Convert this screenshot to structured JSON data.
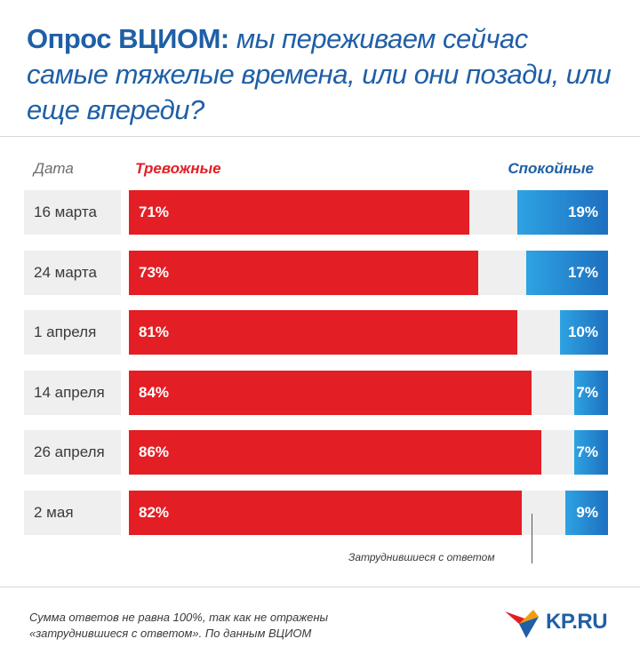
{
  "title": {
    "lead": "Опрос ВЦИОМ:",
    "rest": "мы переживаем сейчас самые тяжелые времена, или они позади, или еще впереди?"
  },
  "headers": {
    "date": "Дата",
    "left": "Тревожные",
    "right": "Спокойные"
  },
  "rows": [
    {
      "date": "16 марта",
      "left_label": "71%",
      "right_label": "19%"
    },
    {
      "date": "24 марта",
      "left_label": "73%",
      "right_label": "17%"
    },
    {
      "date": "1 апреля",
      "left_label": "81%",
      "right_label": "10%"
    },
    {
      "date": "14 апреля",
      "left_label": "84%",
      "right_label": "7%"
    },
    {
      "date": "26 апреля",
      "left_label": "86%",
      "right_label": "7%"
    },
    {
      "date": "2 мая",
      "left_label": "82%",
      "right_label": "9%"
    }
  ],
  "chart_data": {
    "type": "bar",
    "categories": [
      "16 марта",
      "24 марта",
      "1 апреля",
      "14 апреля",
      "26 апреля",
      "2 мая"
    ],
    "series": [
      {
        "name": "Тревожные",
        "values": [
          71,
          73,
          81,
          84,
          86,
          82
        ],
        "color": "#e31e24"
      },
      {
        "name": "Спокойные",
        "values": [
          19,
          17,
          10,
          7,
          7,
          9
        ],
        "color": "#1f8fd6"
      }
    ],
    "ylim": [
      0,
      100
    ]
  },
  "note": "Затруднившиеся с ответом",
  "footer": {
    "line1": "Сумма ответов не равна 100%, так как не отражены",
    "line2": "«затруднившиеся с ответом». По данным ВЦИОМ"
  },
  "logo": {
    "text": "KP.RU",
    "colors": [
      "#e31e24",
      "#f39c12",
      "#1f5fa6"
    ]
  },
  "colors": {
    "title": "#1f5fa6",
    "red": "#e31e24",
    "blue": "#1f8fd6",
    "track": "#efefef"
  }
}
